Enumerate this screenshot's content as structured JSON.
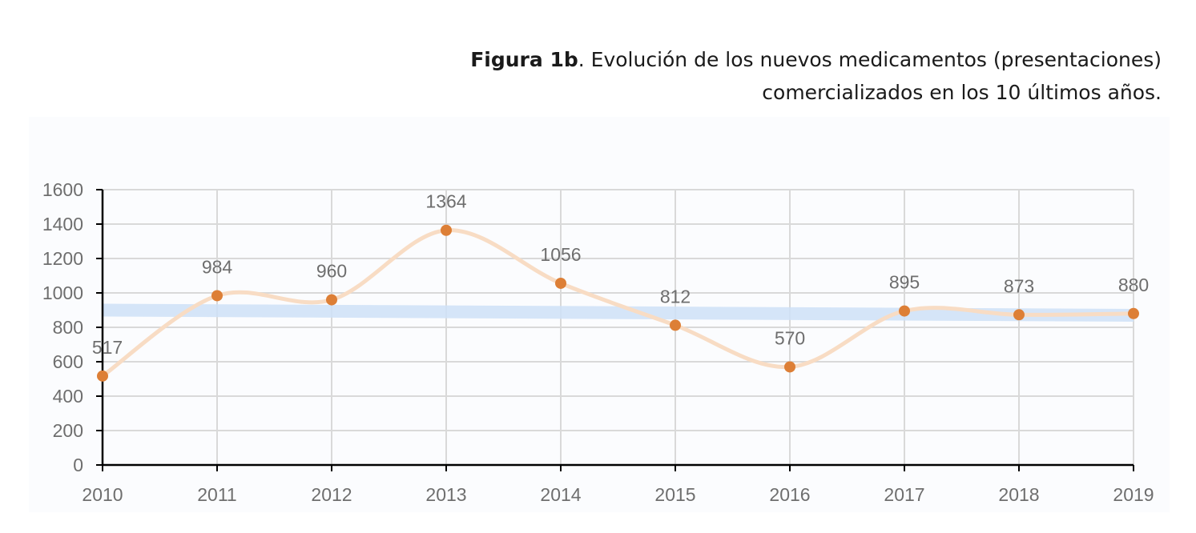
{
  "caption": {
    "figure_label": "Figura 1b",
    "line1": ". Evolución de los nuevos medicamentos (presentaciones)",
    "line2": "comercializados en los 10 últimos años."
  },
  "colors": {
    "marker": "#dd7f36",
    "curve": "#f8dcc4",
    "band": "#cfe2f8",
    "grid": "#d9d9d9",
    "axis": "#000000",
    "text": "#6e6e6e"
  },
  "chart_data": {
    "type": "line",
    "title": "",
    "xlabel": "",
    "ylabel": "",
    "x": [
      "2010",
      "2011",
      "2012",
      "2013",
      "2014",
      "2015",
      "2016",
      "2017",
      "2018",
      "2019"
    ],
    "values": [
      517,
      984,
      960,
      1364,
      1056,
      812,
      570,
      895,
      873,
      880
    ],
    "data_labels": [
      "517",
      "984",
      "960",
      "1364",
      "1056",
      "812",
      "570",
      "895",
      "873",
      "880"
    ],
    "yticks": [
      "0",
      "200",
      "400",
      "600",
      "800",
      "1000",
      "1200",
      "1400",
      "1600"
    ],
    "ylim": [
      0,
      1600
    ],
    "trend_band": {
      "start": 900,
      "end": 870
    },
    "grid": true,
    "legend": "none",
    "smoothed": true
  }
}
